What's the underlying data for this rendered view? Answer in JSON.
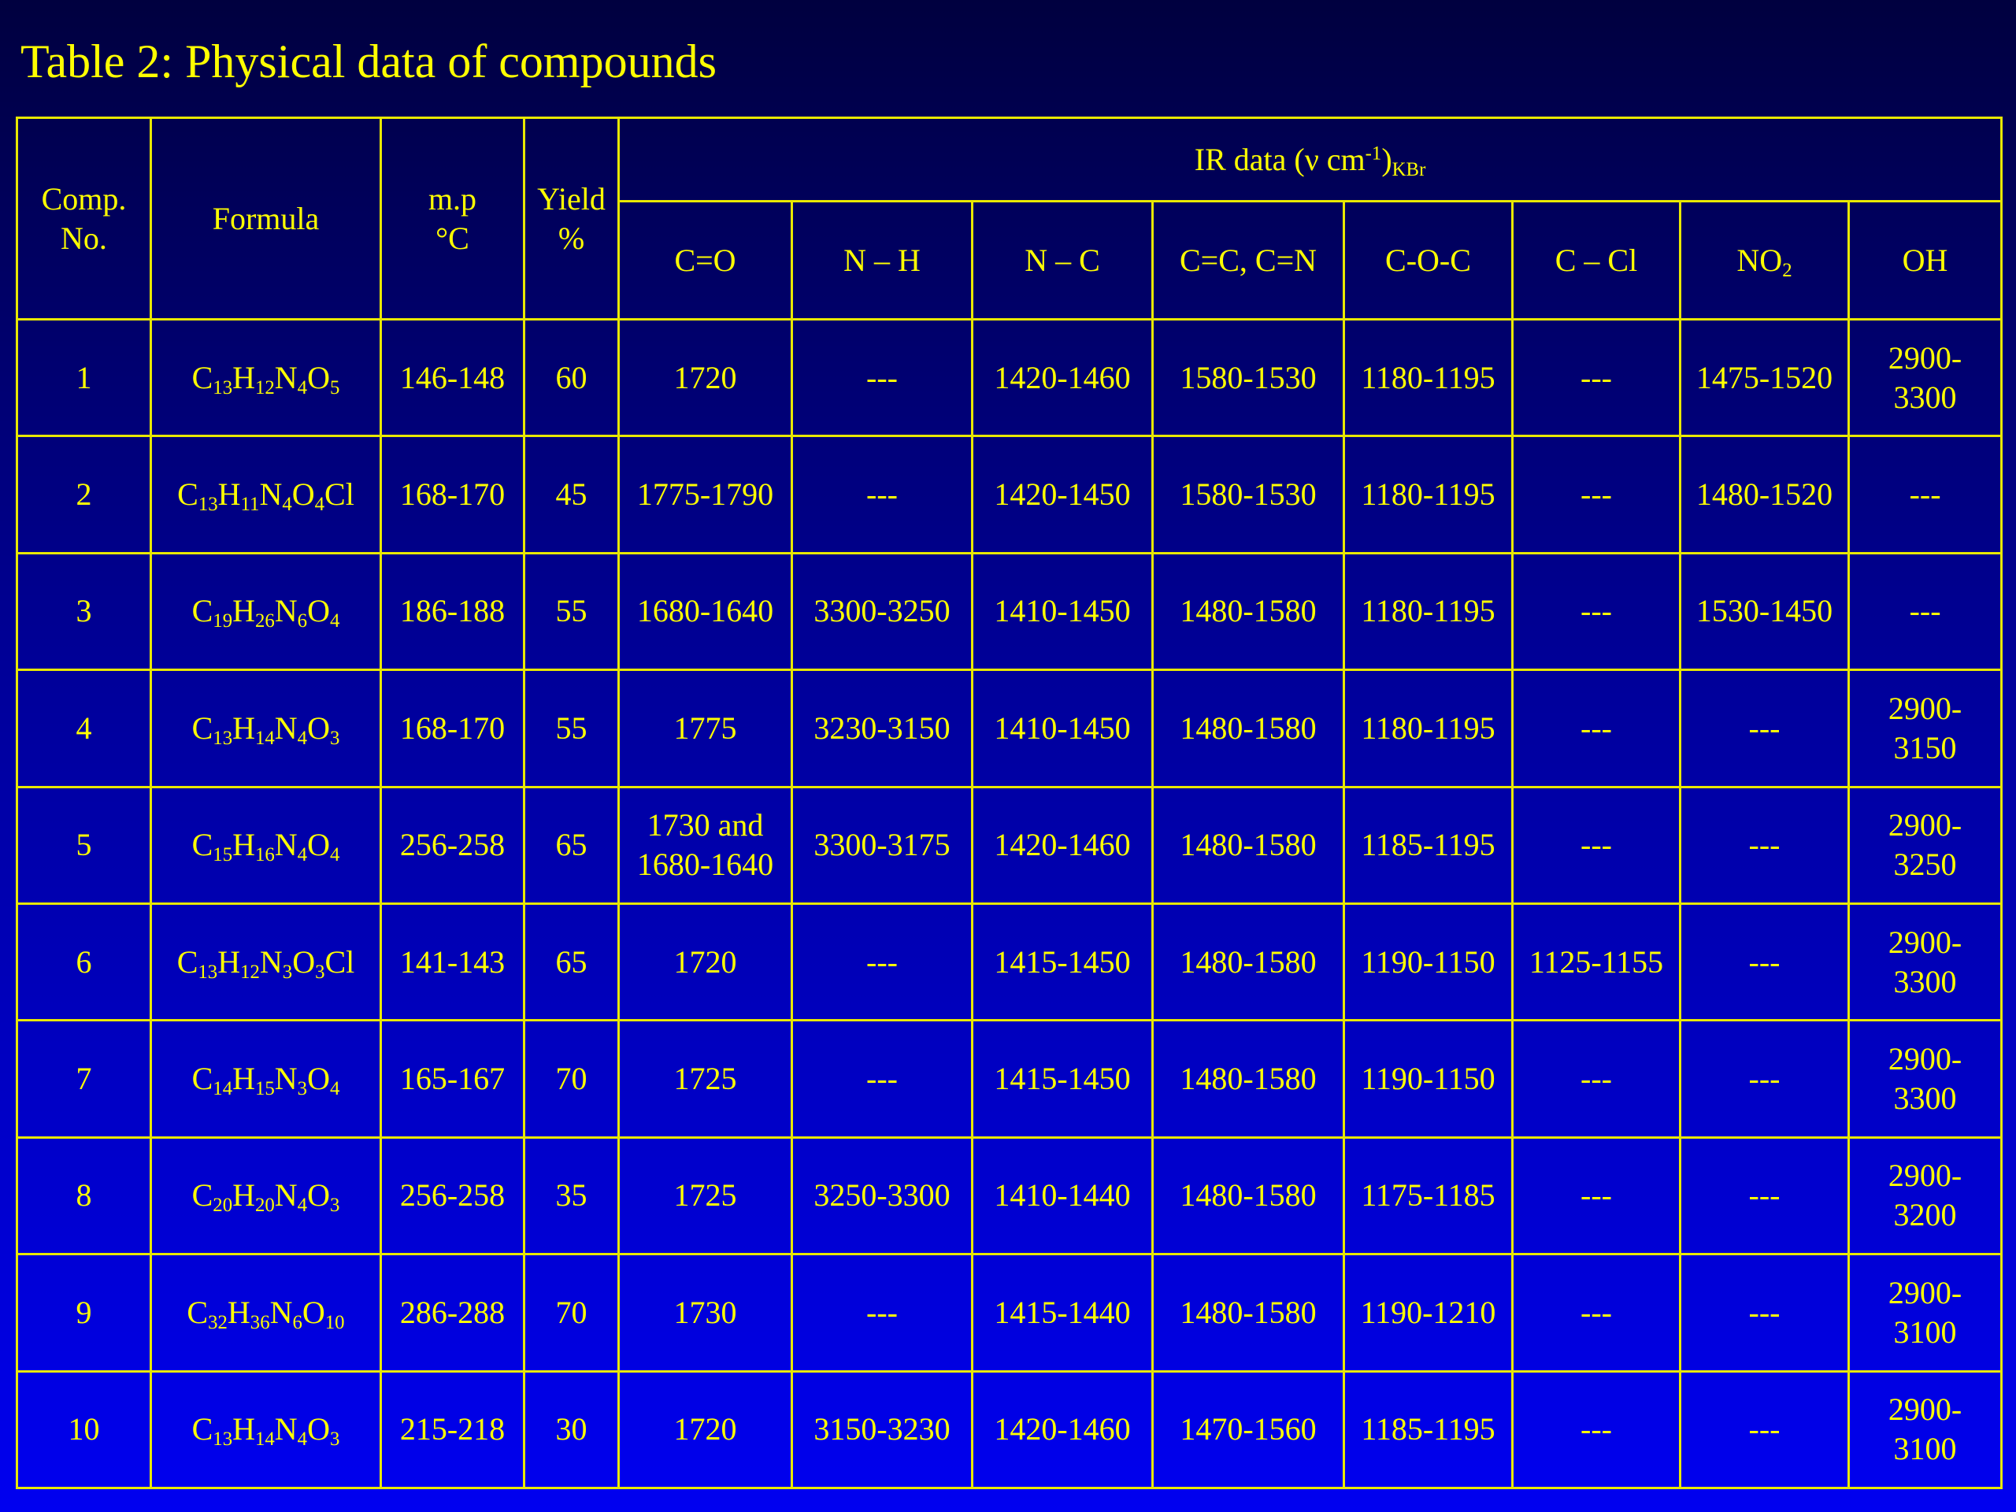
{
  "title": "Table 2: Physical data of compounds",
  "headers": {
    "comp_line1": "Comp.",
    "comp_line2": "No.",
    "formula": "Formula",
    "mp_line1": "m.p",
    "mp_line2": "°C",
    "yield_line1": "Yield",
    "yield_line2": "%",
    "ir_main": "IR data (ν cm",
    "ir_sup": "-1",
    "ir_close": ")",
    "ir_sub": "KBr",
    "co": "C=O",
    "nh": "N – H",
    "nc": "N – C",
    "cc_cn": "C=C, C=N",
    "coc": "C-O-C",
    "ccl": "C – Cl",
    "no2_main": "NO",
    "no2_sub": "2",
    "oh": "OH"
  },
  "rows": [
    {
      "no": "1",
      "formula": [
        [
          "C",
          "13"
        ],
        [
          "H",
          "12"
        ],
        [
          "N",
          "4"
        ],
        [
          "O",
          "5"
        ]
      ],
      "mp": "146-148",
      "yield": "60",
      "co": [
        "1720"
      ],
      "nh": "---",
      "nc": "1420-1460",
      "cc": "1580-1530",
      "coc": "1180-1195",
      "ccl": "---",
      "no2": "1475-1520",
      "oh": [
        "2900-",
        "3300"
      ]
    },
    {
      "no": "2",
      "formula": [
        [
          "C",
          "13"
        ],
        [
          "H",
          "11"
        ],
        [
          "N",
          "4"
        ],
        [
          "O",
          "4"
        ],
        [
          "Cl",
          ""
        ]
      ],
      "mp": "168-170",
      "yield": "45",
      "co": [
        "1775-1790"
      ],
      "nh": "---",
      "nc": "1420-1450",
      "cc": "1580-1530",
      "coc": "1180-1195",
      "ccl": "---",
      "no2": "1480-1520",
      "oh": [
        "---"
      ]
    },
    {
      "no": "3",
      "formula": [
        [
          "C",
          "19"
        ],
        [
          "H",
          "26"
        ],
        [
          "N",
          "6"
        ],
        [
          "O",
          "4"
        ]
      ],
      "mp": "186-188",
      "yield": "55",
      "co": [
        "1680-1640"
      ],
      "nh": "3300-3250",
      "nc": "1410-1450",
      "cc": "1480-1580",
      "coc": "1180-1195",
      "ccl": "---",
      "no2": "1530-1450",
      "oh": [
        "---"
      ]
    },
    {
      "no": "4",
      "formula": [
        [
          "C",
          "13"
        ],
        [
          "H",
          "14"
        ],
        [
          "N",
          "4"
        ],
        [
          "O",
          "3"
        ]
      ],
      "mp": "168-170",
      "yield": "55",
      "co": [
        "1775"
      ],
      "nh": "3230-3150",
      "nc": "1410-1450",
      "cc": "1480-1580",
      "coc": "1180-1195",
      "ccl": "---",
      "no2": "---",
      "oh": [
        "2900-",
        "3150"
      ]
    },
    {
      "no": "5",
      "formula": [
        [
          "C",
          "15"
        ],
        [
          "H",
          "16"
        ],
        [
          "N",
          "4"
        ],
        [
          "O",
          "4"
        ]
      ],
      "mp": "256-258",
      "yield": "65",
      "co": [
        "1730 and",
        "1680-1640"
      ],
      "nh": "3300-3175",
      "nc": "1420-1460",
      "cc": "1480-1580",
      "coc": "1185-1195",
      "ccl": "---",
      "no2": "---",
      "oh": [
        "2900-",
        "3250"
      ]
    },
    {
      "no": "6",
      "formula": [
        [
          "C",
          "13"
        ],
        [
          "H",
          "12"
        ],
        [
          "N",
          "3"
        ],
        [
          "O",
          "3"
        ],
        [
          "Cl",
          ""
        ]
      ],
      "mp": "141-143",
      "yield": "65",
      "co": [
        "1720"
      ],
      "nh": "---",
      "nc": "1415-1450",
      "cc": "1480-1580",
      "coc": "1190-1150",
      "ccl": "1125-1155",
      "no2": "---",
      "oh": [
        "2900-",
        "3300"
      ]
    },
    {
      "no": "7",
      "formula": [
        [
          "C",
          "14"
        ],
        [
          "H",
          "15"
        ],
        [
          "N",
          "3"
        ],
        [
          "O",
          "4"
        ]
      ],
      "mp": "165-167",
      "yield": "70",
      "co": [
        "1725"
      ],
      "nh": "---",
      "nc": "1415-1450",
      "cc": "1480-1580",
      "coc": "1190-1150",
      "ccl": "---",
      "no2": "---",
      "oh": [
        "2900-",
        "3300"
      ]
    },
    {
      "no": "8",
      "formula": [
        [
          "C",
          "20"
        ],
        [
          "H",
          "20"
        ],
        [
          "N",
          "4"
        ],
        [
          "O",
          "3"
        ]
      ],
      "mp": "256-258",
      "yield": "35",
      "co": [
        "1725"
      ],
      "nh": "3250-3300",
      "nc": "1410-1440",
      "cc": "1480-1580",
      "coc": "1175-1185",
      "ccl": "---",
      "no2": "---",
      "oh": [
        "2900-",
        "3200"
      ]
    },
    {
      "no": "9",
      "formula": [
        [
          "C",
          "32"
        ],
        [
          "H",
          "36"
        ],
        [
          "N",
          "6"
        ],
        [
          "O",
          "10"
        ]
      ],
      "mp": "286-288",
      "yield": "70",
      "co": [
        "1730"
      ],
      "nh": "---",
      "nc": "1415-1440",
      "cc": "1480-1580",
      "coc": "1190-1210",
      "ccl": "---",
      "no2": "---",
      "oh": [
        "2900-",
        "3100"
      ]
    },
    {
      "no": "10",
      "formula": [
        [
          "C",
          "13"
        ],
        [
          "H",
          "14"
        ],
        [
          "N",
          "4"
        ],
        [
          "O",
          "3"
        ]
      ],
      "mp": "215-218",
      "yield": "30",
      "co": [
        "1720"
      ],
      "nh": "3150-3230",
      "nc": "1420-1460",
      "cc": "1470-1560",
      "coc": "1185-1195",
      "ccl": "---",
      "no2": "---",
      "oh": [
        "2900-",
        "3100"
      ]
    }
  ]
}
